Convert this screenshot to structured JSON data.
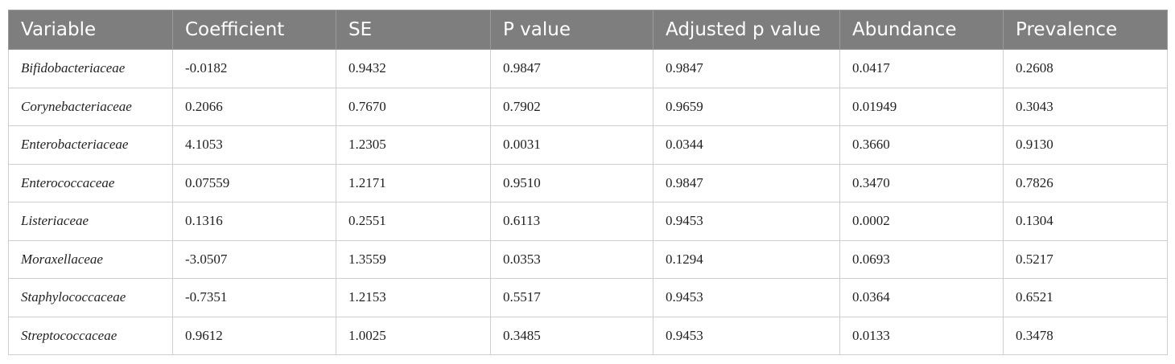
{
  "table": {
    "columns": [
      "Variable",
      "Coefficient",
      "SE",
      "P value",
      "Adjusted p value",
      "Abundance",
      "Prevalence"
    ],
    "rows": [
      [
        "Bifidobacteriaceae",
        "-0.0182",
        "0.9432",
        "0.9847",
        "0.9847",
        "0.0417",
        "0.2608"
      ],
      [
        "Corynebacteriaceae",
        "0.2066",
        "0.7670",
        "0.7902",
        "0.9659",
        "0.01949",
        "0.3043"
      ],
      [
        "Enterobacteriaceae",
        "4.1053",
        "1.2305",
        "0.0031",
        "0.0344",
        "0.3660",
        "0.9130"
      ],
      [
        "Enterococcaceae",
        "0.07559",
        "1.2171",
        "0.9510",
        "0.9847",
        "0.3470",
        "0.7826"
      ],
      [
        "Listeriaceae",
        "0.1316",
        "0.2551",
        "0.6113",
        "0.9453",
        "0.0002",
        "0.1304"
      ],
      [
        "Moraxellaceae",
        "-3.0507",
        "1.3559",
        "0.0353",
        "0.1294",
        "0.0693",
        "0.5217"
      ],
      [
        "Staphylococcaceae",
        "-0.7351",
        "1.2153",
        "0.5517",
        "0.9453",
        "0.0364",
        "0.6521"
      ],
      [
        "Streptococcaceae",
        "0.9612",
        "1.0025",
        "0.3485",
        "0.9453",
        "0.0133",
        "0.3478"
      ]
    ]
  },
  "colors": {
    "header_background": "#7d7e7d",
    "header_text": "#ffffff",
    "grid_line": "#cfcfcf"
  }
}
